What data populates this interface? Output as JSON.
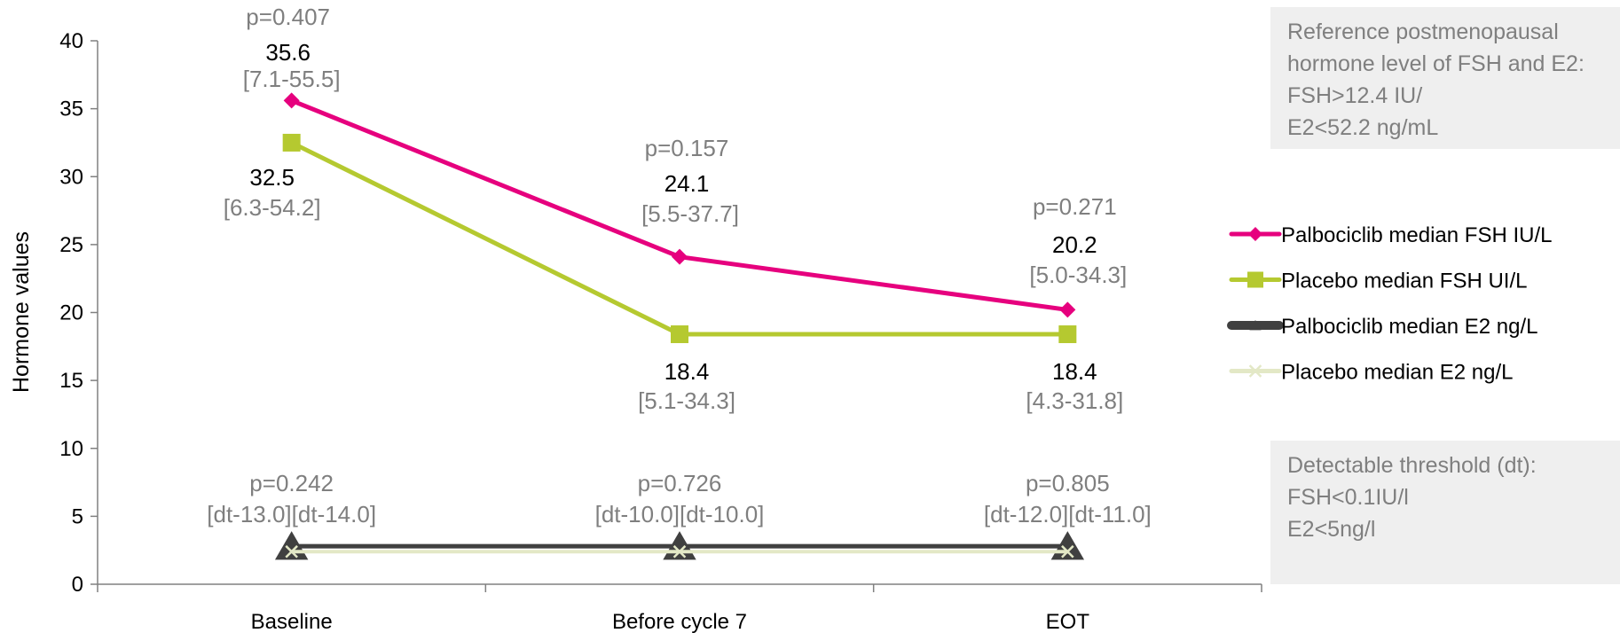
{
  "chart_data": {
    "type": "line",
    "categories": [
      "Baseline",
      "Before cycle 7",
      "EOT"
    ],
    "ylabel": "Hormone values",
    "ylim": [
      0,
      40
    ],
    "yticks": [
      0,
      5,
      10,
      15,
      20,
      25,
      30,
      35,
      40
    ],
    "grid": false,
    "legend_position": "right",
    "series": [
      {
        "name": "Palbociclib median FSH IU/L",
        "values": [
          35.6,
          24.1,
          20.2
        ],
        "color": "#e6007e",
        "marker": "diamond"
      },
      {
        "name": "Placebo median FSH UI/L",
        "values": [
          32.5,
          18.4,
          18.4
        ],
        "color": "#b5c930",
        "marker": "square"
      },
      {
        "name": "Palbociclib median E2 ng/L",
        "values": [
          2.8,
          2.8,
          2.8
        ],
        "color": "#404040",
        "marker": "triangle"
      },
      {
        "name": "Placebo median E2 ng/L",
        "values": [
          2.4,
          2.4,
          2.4
        ],
        "color": "#e3e8c6",
        "marker": "x"
      }
    ],
    "annotations": {
      "fsh_p": [
        "p=0.407",
        "p=0.157",
        "p=0.271"
      ],
      "palbo_fsh_value": [
        "35.6",
        "24.1",
        "20.2"
      ],
      "palbo_fsh_range": [
        "[7.1-55.5]",
        "[5.5-37.7]",
        "[5.0-34.3]"
      ],
      "placebo_fsh_value": [
        "32.5",
        "18.4",
        "18.4"
      ],
      "placebo_fsh_range": [
        "[6.3-54.2]",
        "[5.1-34.3]",
        "[4.3-31.8]"
      ],
      "e2_p": [
        "p=0.242",
        "p=0.726",
        "p=0.805"
      ],
      "e2_range": [
        "[dt-13.0][dt-14.0]",
        "[dt-10.0][dt-10.0]",
        "[dt-12.0][dt-11.0]"
      ]
    },
    "info_boxes": [
      {
        "lines": [
          "Reference postmenopausal",
          "hormone level of FSH and E2:",
          "FSH>12.4 IU/",
          "E2<52.2 ng/mL"
        ]
      },
      {
        "lines": [
          "Detectable threshold (dt):",
          "FSH<0.1IU/l",
          "E2<5ng/l"
        ]
      }
    ]
  }
}
